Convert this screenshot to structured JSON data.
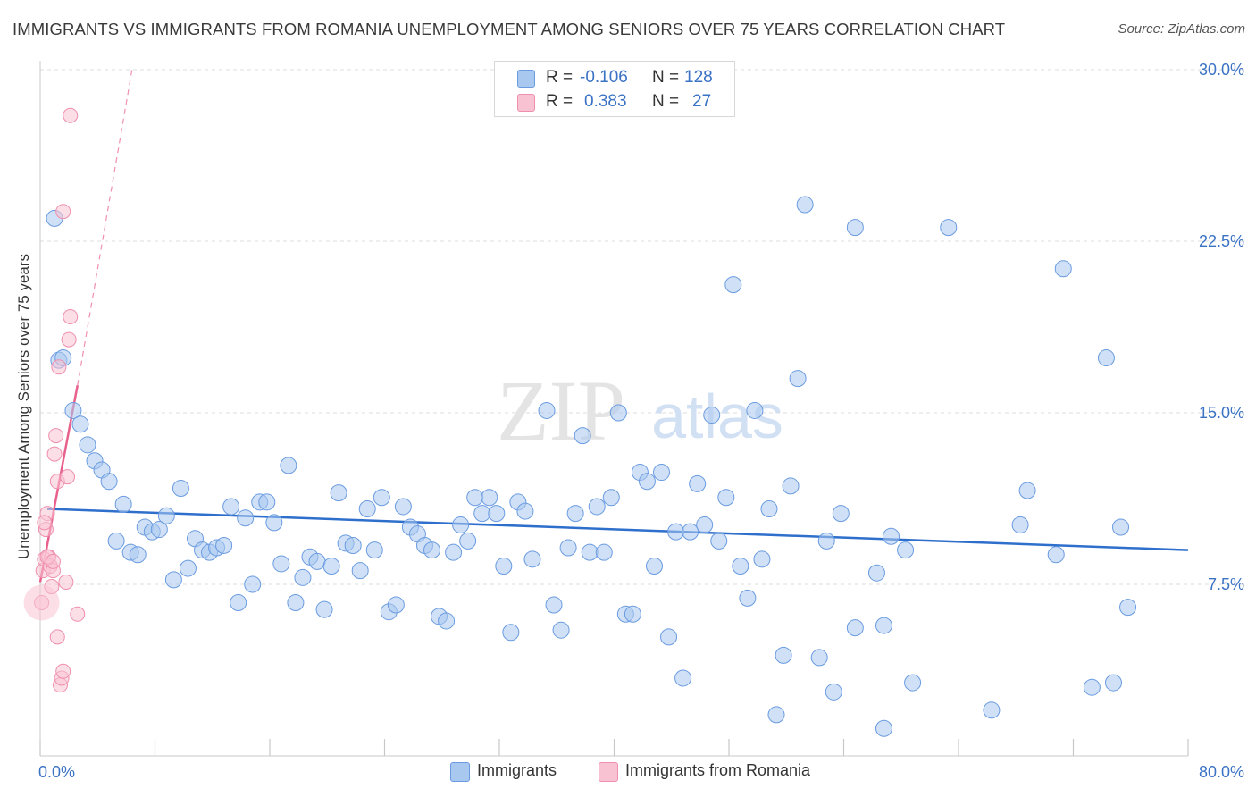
{
  "title": "IMMIGRANTS VS IMMIGRANTS FROM ROMANIA UNEMPLOYMENT AMONG SENIORS OVER 75 YEARS CORRELATION CHART",
  "source": "Source: ZipAtlas.com",
  "watermark": {
    "zip": "ZIP",
    "atlas": "atlas"
  },
  "legend": {
    "rows": [
      {
        "r_label": "R =",
        "r_value": "-0.106",
        "n_label": "N =",
        "n_value": "128",
        "color": "#a9c8f0",
        "stroke": "#6a9be0"
      },
      {
        "r_label": "R =",
        "r_value": "0.383",
        "n_label": "N =",
        "n_value": "27",
        "color": "#f9c2d2",
        "stroke": "#ee8fad"
      }
    ]
  },
  "bottom_legend": [
    {
      "label": "Immigrants",
      "color": "#a9c8f0",
      "stroke": "#6a9be0"
    },
    {
      "label": "Immigrants from Romania",
      "color": "#f9c2d2",
      "stroke": "#ee8fad"
    }
  ],
  "chart_data": {
    "type": "scatter",
    "title": "IMMIGRANTS VS IMMIGRANTS FROM ROMANIA UNEMPLOYMENT AMONG SENIORS OVER 75 YEARS CORRELATION CHART",
    "xlabel": "",
    "ylabel": "Unemployment Among Seniors over 75 years",
    "xlim": [
      0,
      80
    ],
    "ylim": [
      0,
      30
    ],
    "x_tick_labels": [
      "0.0%",
      "80.0%"
    ],
    "y_ticks": [
      7.5,
      15.0,
      22.5,
      30.0
    ],
    "y_tick_labels": [
      "7.5%",
      "15.0%",
      "22.5%",
      "30.0%"
    ],
    "grid": true,
    "series": [
      {
        "name": "Immigrants",
        "color": "#a9c8f0",
        "stroke": "#6a9be0",
        "trend": {
          "x": [
            0.5,
            80
          ],
          "y": [
            10.8,
            9.0
          ],
          "color": "#2f6fcc"
        },
        "points": [
          [
            1.0,
            23.5
          ],
          [
            1.3,
            17.3
          ],
          [
            1.6,
            17.4
          ],
          [
            2.3,
            15.1
          ],
          [
            2.8,
            14.5
          ],
          [
            3.3,
            13.6
          ],
          [
            3.8,
            12.9
          ],
          [
            4.3,
            12.5
          ],
          [
            4.8,
            12.0
          ],
          [
            5.8,
            11.0
          ],
          [
            5.3,
            9.4
          ],
          [
            6.3,
            8.9
          ],
          [
            6.8,
            8.8
          ],
          [
            7.3,
            10.0
          ],
          [
            7.8,
            9.8
          ],
          [
            8.3,
            9.9
          ],
          [
            8.8,
            10.5
          ],
          [
            9.3,
            7.7
          ],
          [
            9.8,
            11.7
          ],
          [
            10.3,
            8.2
          ],
          [
            10.8,
            9.5
          ],
          [
            11.3,
            9.0
          ],
          [
            11.8,
            8.9
          ],
          [
            12.3,
            9.1
          ],
          [
            12.8,
            9.2
          ],
          [
            13.3,
            10.9
          ],
          [
            13.8,
            6.7
          ],
          [
            14.3,
            10.4
          ],
          [
            14.8,
            7.5
          ],
          [
            15.3,
            11.1
          ],
          [
            15.8,
            11.1
          ],
          [
            16.3,
            10.2
          ],
          [
            16.8,
            8.4
          ],
          [
            17.3,
            12.7
          ],
          [
            17.8,
            6.7
          ],
          [
            18.3,
            7.8
          ],
          [
            18.8,
            8.7
          ],
          [
            19.3,
            8.5
          ],
          [
            19.8,
            6.4
          ],
          [
            20.3,
            8.3
          ],
          [
            20.8,
            11.5
          ],
          [
            21.3,
            9.3
          ],
          [
            21.8,
            9.2
          ],
          [
            22.3,
            8.1
          ],
          [
            22.8,
            10.8
          ],
          [
            23.3,
            9.0
          ],
          [
            23.8,
            11.3
          ],
          [
            24.3,
            6.3
          ],
          [
            24.8,
            6.6
          ],
          [
            25.3,
            10.9
          ],
          [
            25.8,
            10.0
          ],
          [
            26.3,
            9.7
          ],
          [
            26.8,
            9.2
          ],
          [
            27.3,
            9.0
          ],
          [
            27.8,
            6.1
          ],
          [
            28.3,
            5.9
          ],
          [
            28.8,
            8.9
          ],
          [
            29.3,
            10.1
          ],
          [
            29.8,
            9.4
          ],
          [
            30.3,
            11.3
          ],
          [
            30.8,
            10.6
          ],
          [
            31.3,
            11.3
          ],
          [
            31.8,
            10.6
          ],
          [
            32.3,
            8.3
          ],
          [
            32.8,
            5.4
          ],
          [
            33.3,
            11.1
          ],
          [
            33.8,
            10.7
          ],
          [
            34.3,
            8.6
          ],
          [
            35.3,
            15.1
          ],
          [
            35.8,
            6.6
          ],
          [
            36.3,
            5.5
          ],
          [
            36.8,
            9.1
          ],
          [
            37.3,
            10.6
          ],
          [
            37.8,
            14.0
          ],
          [
            38.3,
            8.9
          ],
          [
            38.8,
            10.9
          ],
          [
            39.3,
            8.9
          ],
          [
            39.8,
            11.3
          ],
          [
            40.3,
            15.0
          ],
          [
            40.8,
            6.2
          ],
          [
            41.3,
            6.2
          ],
          [
            41.8,
            12.4
          ],
          [
            42.3,
            12.0
          ],
          [
            42.8,
            8.3
          ],
          [
            43.3,
            12.4
          ],
          [
            43.8,
            5.2
          ],
          [
            44.3,
            9.8
          ],
          [
            44.8,
            3.4
          ],
          [
            45.3,
            9.8
          ],
          [
            45.8,
            11.9
          ],
          [
            46.3,
            10.1
          ],
          [
            46.8,
            14.9
          ],
          [
            47.3,
            9.4
          ],
          [
            47.8,
            11.3
          ],
          [
            48.3,
            20.6
          ],
          [
            48.8,
            8.3
          ],
          [
            49.3,
            6.9
          ],
          [
            49.8,
            15.1
          ],
          [
            50.3,
            8.6
          ],
          [
            50.8,
            10.8
          ],
          [
            51.3,
            1.8
          ],
          [
            51.8,
            4.4
          ],
          [
            52.3,
            11.8
          ],
          [
            52.8,
            16.5
          ],
          [
            53.3,
            24.1
          ],
          [
            54.3,
            4.3
          ],
          [
            54.8,
            9.4
          ],
          [
            55.3,
            2.8
          ],
          [
            55.8,
            10.6
          ],
          [
            56.8,
            23.1
          ],
          [
            56.8,
            5.6
          ],
          [
            58.8,
            1.2
          ],
          [
            58.3,
            8.0
          ],
          [
            58.8,
            5.7
          ],
          [
            59.3,
            9.6
          ],
          [
            60.8,
            3.2
          ],
          [
            63.3,
            23.1
          ],
          [
            66.3,
            2.0
          ],
          [
            68.3,
            10.1
          ],
          [
            68.8,
            11.6
          ],
          [
            70.8,
            8.8
          ],
          [
            71.3,
            21.3
          ],
          [
            73.3,
            3.0
          ],
          [
            74.3,
            17.4
          ],
          [
            74.8,
            3.2
          ],
          [
            75.3,
            10.0
          ],
          [
            75.8,
            6.5
          ],
          [
            60.3,
            9.0
          ]
        ]
      },
      {
        "name": "Immigrants from Romania",
        "color": "#f9c2d2",
        "stroke": "#ee8fad",
        "trend": {
          "x": [
            0,
            2.6
          ],
          "y": [
            7.6,
            16.2
          ],
          "color": "#e8618c",
          "extended_to": [
            6.4,
            30.0
          ]
        },
        "points": [
          [
            0.1,
            6.7
          ],
          [
            0.2,
            8.1
          ],
          [
            0.3,
            8.6
          ],
          [
            0.4,
            9.9
          ],
          [
            0.5,
            10.6
          ],
          [
            0.6,
            8.7
          ],
          [
            0.7,
            8.3
          ],
          [
            0.8,
            7.4
          ],
          [
            0.9,
            8.1
          ],
          [
            1.0,
            13.2
          ],
          [
            1.1,
            14.0
          ],
          [
            1.2,
            12.0
          ],
          [
            1.3,
            17.0
          ],
          [
            1.2,
            5.2
          ],
          [
            1.4,
            3.1
          ],
          [
            1.5,
            3.4
          ],
          [
            1.6,
            3.7
          ],
          [
            1.6,
            23.8
          ],
          [
            1.8,
            7.6
          ],
          [
            1.9,
            12.2
          ],
          [
            2.0,
            18.2
          ],
          [
            2.1,
            19.2
          ],
          [
            2.1,
            28.0
          ],
          [
            2.6,
            6.2
          ],
          [
            0.5,
            8.7
          ],
          [
            0.9,
            8.5
          ],
          [
            0.3,
            10.2
          ]
        ]
      }
    ]
  }
}
